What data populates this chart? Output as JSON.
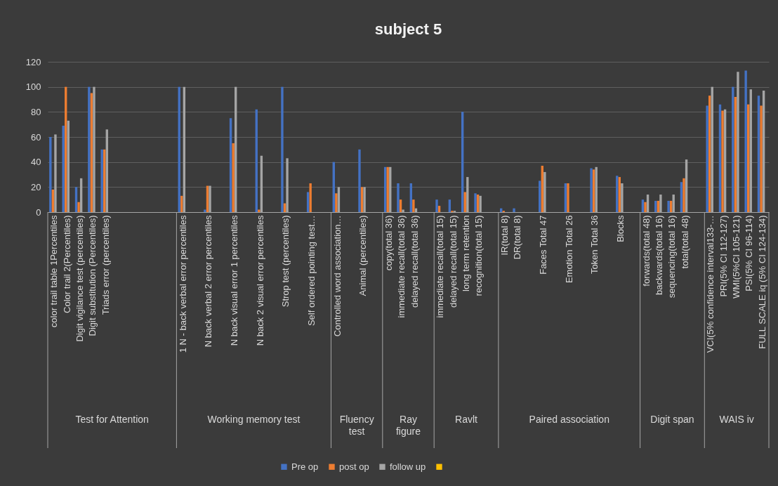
{
  "chart_data": {
    "type": "bar",
    "title": "subject 5",
    "categories": [
      "color trail table 1Percentiles",
      "Color trail 2(Percentiles)",
      "Digit vigilance test (percentiles)",
      "Digit substitution (Percentiles)",
      "Triads error (percentiles)",
      null,
      null,
      null,
      null,
      null,
      "1 N - back verbal error percentiles",
      null,
      "N back verbal  2 error percentiles",
      null,
      "N back visual error 1 percentiles",
      null,
      "N back 2 visual error percentiles",
      null,
      "Strop test (percentiles)",
      null,
      "Self ordered pointing test…",
      null,
      "Controlled word association…",
      null,
      "Animal (percentiles)",
      null,
      "copy(total 36)",
      "immediate recall(total 36)",
      "delayed recall(total 36)",
      null,
      "immediate recall(total 15)",
      "delayed recall(total 15)",
      "long term retention",
      "recognition(total 15)",
      null,
      "IR(total 8)",
      "DR(total 8)",
      null,
      "Faces Total 47",
      null,
      "Emotion Total 26",
      null,
      "Token Total 36",
      null,
      "Blocks",
      null,
      "forwards(total 48)",
      "backwards(total 16)",
      "sequencing(total 16)",
      "total(total 48)",
      null,
      "VCI(5% confidence interval133-…",
      "PRI(5% CI 112-127)",
      "WMI(5%CI 105-121)",
      "PSI(5% CI 96-114)",
      "FULL SCALE iq (5% CI 124-134)"
    ],
    "series": [
      {
        "name": "Pre op",
        "color": "#4472c4",
        "values": [
          60,
          69,
          20,
          100,
          50,
          null,
          null,
          null,
          null,
          null,
          100,
          null,
          2,
          null,
          75,
          null,
          82,
          null,
          100,
          null,
          16,
          null,
          40,
          null,
          50,
          null,
          36,
          23,
          23,
          null,
          10,
          10,
          80,
          15,
          null,
          3,
          3,
          null,
          25,
          null,
          23,
          null,
          35,
          null,
          29,
          null,
          10,
          9,
          9,
          24,
          null,
          85,
          86,
          100,
          113,
          93
        ]
      },
      {
        "name": "post op",
        "color": "#ed7d31",
        "values": [
          18,
          100,
          8,
          95,
          50,
          null,
          null,
          null,
          null,
          null,
          13,
          null,
          21,
          null,
          55,
          null,
          2,
          null,
          7,
          null,
          23,
          null,
          15,
          null,
          20,
          null,
          36,
          10,
          10,
          null,
          5,
          1,
          16,
          14,
          null,
          1,
          null,
          null,
          37,
          null,
          23,
          null,
          34,
          null,
          28,
          null,
          8,
          9,
          9,
          27,
          null,
          93,
          81,
          92,
          86,
          85
        ]
      },
      {
        "name": "follow up",
        "color": "#a5a5a5",
        "values": [
          62,
          73,
          27,
          100,
          66,
          null,
          null,
          null,
          null,
          null,
          100,
          null,
          21,
          null,
          100,
          null,
          45,
          null,
          43,
          null,
          null,
          null,
          20,
          null,
          20,
          null,
          36,
          2,
          3,
          null,
          null,
          1,
          28,
          13,
          null,
          null,
          null,
          null,
          32,
          null,
          null,
          null,
          36,
          null,
          23,
          null,
          14,
          14,
          14,
          42,
          null,
          100,
          82,
          112,
          98,
          97
        ]
      },
      {
        "color": "#ffc000",
        "values": [
          null,
          null,
          null,
          null,
          null,
          null,
          null,
          null,
          null,
          null,
          null,
          null,
          null,
          null,
          null,
          null,
          null,
          null,
          null,
          null,
          null,
          null,
          null,
          null,
          null,
          null,
          null,
          null,
          null,
          null,
          null,
          null,
          null,
          null,
          null,
          null,
          null,
          null,
          null,
          null,
          null,
          null,
          null,
          null,
          null,
          null,
          null,
          null,
          null,
          null,
          null,
          null,
          null,
          null,
          null,
          null
        ]
      }
    ],
    "ylim": [
      0,
      120
    ],
    "yticks": [
      0,
      20,
      40,
      60,
      80,
      100,
      120
    ],
    "grid": "y",
    "legend": "bottom",
    "annotations": [
      "Test for Attention",
      "Working memory test",
      "Fluency test",
      "Ray figure",
      "Ravlt",
      "Paired association",
      "Digit span",
      "WAIS iv"
    ]
  }
}
